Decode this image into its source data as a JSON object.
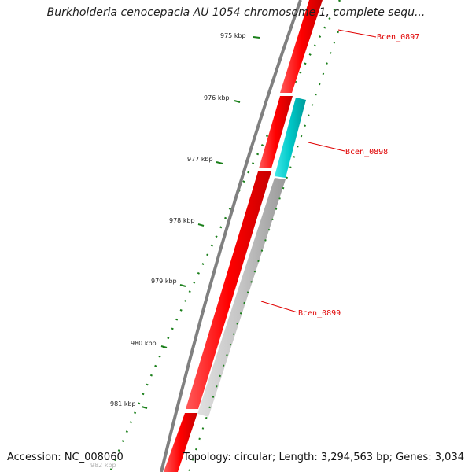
{
  "title": "Burkholderia cenocepacia AU 1054 chromosome 1, complete sequ...",
  "accession": "Accession: NC_008060",
  "summary": "Topology: circular; Length: 3,294,563 bp; Genes: 3,034",
  "ticks": [
    "975 kbp",
    "976 kbp",
    "977 kbp",
    "978 kbp",
    "979 kbp",
    "980 kbp",
    "981 kbp",
    "982 kbp"
  ],
  "genes": [
    {
      "name": "Bcen_0897",
      "strand": "forward",
      "color": "#ff0000"
    },
    {
      "name": "Bcen_0898",
      "strand": "reverse",
      "color": "#00c8c8"
    },
    {
      "name": "Bcen_0899",
      "strand": "reverse",
      "color": "#c0c0c0"
    }
  ],
  "colors": {
    "backbone": "#808080",
    "forward": "#ff0000",
    "reverse_cyan": "#00c8c8",
    "reverse_gray": "#c0c0c0",
    "ticks": "#1a7f1a",
    "label": "#e00000"
  }
}
